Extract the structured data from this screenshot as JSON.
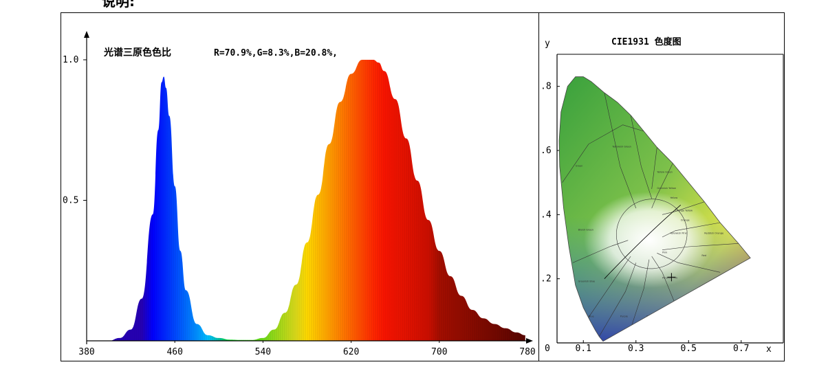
{
  "header_fragment": "说明:",
  "chart_data": [
    {
      "type": "area",
      "title": "光谱三原色色比",
      "subtitle": "R=70.9%,G=8.3%,B=20.8%,",
      "ratios": {
        "R": 70.9,
        "G": 8.3,
        "B": 20.8
      },
      "x_ticks": [
        "380",
        "460",
        "540",
        "620",
        "700",
        "780"
      ],
      "y_ticks": [
        "1.0",
        "0.5"
      ],
      "xlim": [
        380,
        780
      ],
      "ylim": [
        0,
        1.0
      ],
      "series": [
        {
          "x": [
            380,
            400,
            410,
            420,
            430,
            440,
            445,
            448,
            450,
            452,
            455,
            460,
            465,
            470,
            480,
            490,
            500,
            510,
            520,
            530,
            540,
            550,
            560,
            570,
            580,
            590,
            600,
            610,
            620,
            630,
            640,
            645,
            650,
            660,
            670,
            680,
            690,
            700,
            710,
            720,
            730,
            740,
            750,
            760,
            770,
            778
          ],
          "y": [
            0.0,
            0.0,
            0.01,
            0.04,
            0.15,
            0.45,
            0.75,
            0.92,
            0.94,
            0.9,
            0.8,
            0.55,
            0.32,
            0.18,
            0.06,
            0.02,
            0.01,
            0.004,
            0.003,
            0.003,
            0.01,
            0.04,
            0.1,
            0.2,
            0.35,
            0.52,
            0.7,
            0.85,
            0.95,
            1.0,
            1.0,
            0.99,
            0.96,
            0.86,
            0.72,
            0.57,
            0.43,
            0.32,
            0.23,
            0.16,
            0.11,
            0.08,
            0.06,
            0.045,
            0.03,
            0.02
          ]
        }
      ]
    },
    {
      "type": "diagram",
      "title": "CIE1931 色度图",
      "xlabel": "x",
      "ylabel": "y",
      "x_ticks": [
        "0",
        "0.1",
        "0.3",
        "0.5",
        "0.7"
      ],
      "y_ticks": [
        ".8",
        ".6",
        ".4",
        ".2"
      ],
      "xlim": [
        0,
        0.8
      ],
      "ylim": [
        0,
        0.9
      ],
      "markers": [
        {
          "x": 0.435,
          "y": 0.205
        }
      ],
      "region_labels": [
        "Green",
        "Yellowish Green",
        "Yellow Green",
        "Greenish Yellow",
        "Yellow",
        "Orange Yellow",
        "Orange",
        "Yellowish Pink",
        "Reddish Orange",
        "Bluish Green",
        "Pink",
        "Red",
        "Purplish Pink",
        "Greenish Blue",
        "Purplish Red",
        "Blue",
        "Purple",
        "Reddish Purple"
      ]
    }
  ]
}
